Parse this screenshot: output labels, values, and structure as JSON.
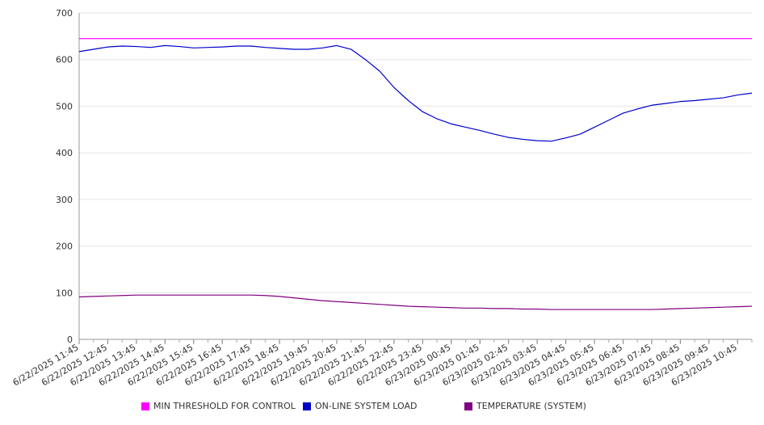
{
  "chart_data": {
    "type": "line",
    "title": "",
    "xlabel": "",
    "ylabel": "",
    "ylim": [
      0,
      700
    ],
    "yticks": [
      0,
      100,
      200,
      300,
      400,
      500,
      600,
      700
    ],
    "grid": "horizontal",
    "legend_position": "bottom",
    "x_tick_labels": [
      "6/22/2025 11:45",
      "6/22/2025 12:45",
      "6/22/2025 13:45",
      "6/22/2025 14:45",
      "6/22/2025 15:45",
      "6/22/2025 16:45",
      "6/22/2025 17:45",
      "6/22/2025 18:45",
      "6/22/2025 19:45",
      "6/22/2025 20:45",
      "6/22/2025 21:45",
      "6/22/2025 22:45",
      "6/22/2025 23:45",
      "6/23/2025 00:45",
      "6/23/2025 01:45",
      "6/23/2025 02:45",
      "6/23/2025 03:45",
      "6/23/2025 04:45",
      "6/23/2025 05:45",
      "6/23/2025 06:45",
      "6/23/2025 07:45",
      "6/23/2025 08:45",
      "6/23/2025 09:45",
      "6/23/2025 10:45"
    ],
    "x": [
      "6/22/2025 11:45",
      "6/22/2025 12:15",
      "6/22/2025 12:45",
      "6/22/2025 13:15",
      "6/22/2025 13:45",
      "6/22/2025 14:15",
      "6/22/2025 14:45",
      "6/22/2025 15:15",
      "6/22/2025 15:45",
      "6/22/2025 16:15",
      "6/22/2025 16:45",
      "6/22/2025 17:15",
      "6/22/2025 17:45",
      "6/22/2025 18:15",
      "6/22/2025 18:45",
      "6/22/2025 19:15",
      "6/22/2025 19:45",
      "6/22/2025 20:15",
      "6/22/2025 20:45",
      "6/22/2025 21:15",
      "6/22/2025 21:45",
      "6/22/2025 22:15",
      "6/22/2025 22:45",
      "6/22/2025 23:15",
      "6/22/2025 23:45",
      "6/23/2025 00:15",
      "6/23/2025 00:45",
      "6/23/2025 01:15",
      "6/23/2025 01:45",
      "6/23/2025 02:15",
      "6/23/2025 02:45",
      "6/23/2025 03:15",
      "6/23/2025 03:45",
      "6/23/2025 04:15",
      "6/23/2025 04:45",
      "6/23/2025 05:15",
      "6/23/2025 05:45",
      "6/23/2025 06:15",
      "6/23/2025 06:45",
      "6/23/2025 07:15",
      "6/23/2025 07:45",
      "6/23/2025 08:15",
      "6/23/2025 08:45",
      "6/23/2025 09:15",
      "6/23/2025 09:45",
      "6/23/2025 10:15",
      "6/23/2025 10:45",
      "6/23/2025 11:15"
    ],
    "series": [
      {
        "name": "MIN THRESHOLD FOR CONTROL",
        "color": "#ff00ff",
        "values": [
          645,
          645,
          645,
          645,
          645,
          645,
          645,
          645,
          645,
          645,
          645,
          645,
          645,
          645,
          645,
          645,
          645,
          645,
          645,
          645,
          645,
          645,
          645,
          645,
          645,
          645,
          645,
          645,
          645,
          645,
          645,
          645,
          645,
          645,
          645,
          645,
          645,
          645,
          645,
          645,
          645,
          645,
          645,
          645,
          645,
          645,
          645,
          645
        ]
      },
      {
        "name": "ON-LINE SYSTEM LOAD",
        "color": "#0000cc",
        "values": [
          617,
          622,
          627,
          629,
          628,
          626,
          630,
          628,
          625,
          626,
          627,
          629,
          629,
          626,
          624,
          622,
          622,
          625,
          630,
          622,
          600,
          575,
          540,
          512,
          488,
          473,
          462,
          455,
          448,
          440,
          433,
          429,
          426,
          425,
          432,
          440,
          455,
          470,
          485,
          494,
          502,
          506,
          510,
          512,
          515,
          518,
          524,
          528
        ]
      },
      {
        "name": "TEMPERATURE (SYSTEM)",
        "color": "#800080",
        "values": [
          91,
          92,
          93,
          94,
          95,
          95,
          95,
          95,
          95,
          95,
          95,
          95,
          95,
          94,
          92,
          89,
          86,
          83,
          81,
          79,
          77,
          75,
          73,
          71,
          70,
          69,
          68,
          67,
          67,
          66,
          66,
          65,
          65,
          64,
          64,
          64,
          64,
          64,
          64,
          64,
          64,
          65,
          66,
          67,
          68,
          69,
          70,
          71
        ]
      }
    ]
  }
}
